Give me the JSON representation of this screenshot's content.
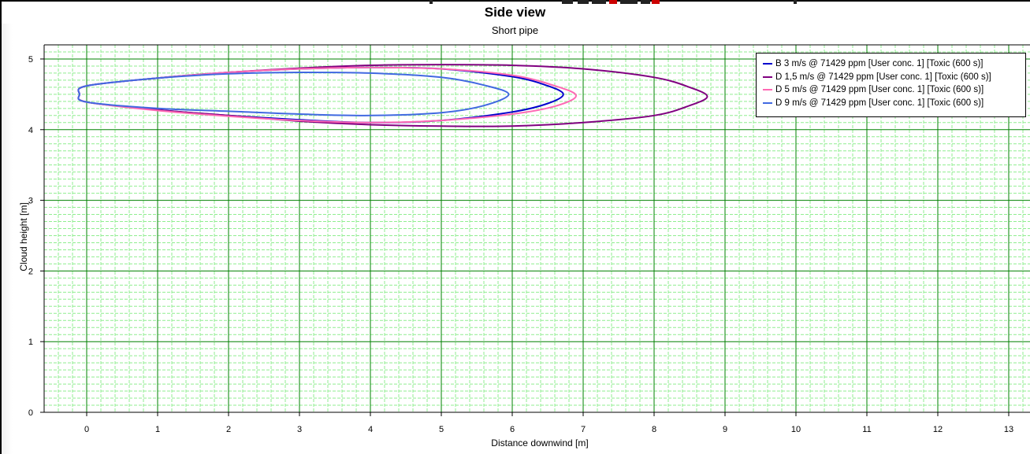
{
  "chart_data": {
    "type": "line",
    "title": "Side view",
    "subtitle": "Short pipe",
    "xlabel": "Distance downwind [m]",
    "ylabel": "Cloud height [m]",
    "xlim": [
      -0.6,
      13.3
    ],
    "ylim": [
      0,
      5.2
    ],
    "x_ticks": [
      "0",
      "1",
      "2",
      "3",
      "4",
      "5",
      "6",
      "7",
      "8",
      "9",
      "10",
      "11",
      "12",
      "13"
    ],
    "y_ticks": [
      "0",
      "1",
      "2",
      "3",
      "4",
      "5"
    ],
    "grid": {
      "major": true,
      "minor": true,
      "major_color": "#008000",
      "minor_color": "#90EE90"
    },
    "legend_position": "top-right",
    "series": [
      {
        "name": "B 3 m/s @ 71429 ppm  [User conc. 1]  [Toxic (600 s)]",
        "color": "#0000CD",
        "x": [
          -0.1,
          0.0,
          1.0,
          2.0,
          3.0,
          4.0,
          5.0,
          6.0,
          6.5,
          6.72,
          6.5,
          6.0,
          5.0,
          4.0,
          3.0,
          2.0,
          1.0,
          0.0,
          -0.1
        ],
        "y": [
          4.5,
          4.62,
          4.73,
          4.81,
          4.86,
          4.88,
          4.86,
          4.75,
          4.62,
          4.5,
          4.37,
          4.25,
          4.13,
          4.1,
          4.14,
          4.2,
          4.28,
          4.39,
          4.5
        ]
      },
      {
        "name": "D 1,5 m/s @ 71429 ppm  [User conc. 1]  [Toxic (600 s)]",
        "color": "#800080",
        "x": [
          -0.1,
          0.0,
          1.0,
          2.0,
          3.0,
          4.0,
          5.0,
          6.0,
          7.0,
          8.0,
          8.5,
          8.75,
          8.5,
          8.0,
          7.0,
          6.0,
          5.0,
          4.0,
          3.0,
          2.0,
          1.0,
          0.0,
          -0.1
        ],
        "y": [
          4.5,
          4.62,
          4.73,
          4.81,
          4.87,
          4.91,
          4.92,
          4.91,
          4.86,
          4.74,
          4.6,
          4.47,
          4.34,
          4.2,
          4.1,
          4.05,
          4.05,
          4.07,
          4.12,
          4.2,
          4.28,
          4.39,
          4.5
        ]
      },
      {
        "name": "D 5 m/s @ 71429 ppm  [User conc. 1]  [Toxic (600 s)]",
        "color": "#FF69B4",
        "x": [
          -0.1,
          0.0,
          1.0,
          2.0,
          3.0,
          4.0,
          5.0,
          6.0,
          6.6,
          6.9,
          6.6,
          6.0,
          5.0,
          4.0,
          3.0,
          2.0,
          1.0,
          0.0,
          -0.1
        ],
        "y": [
          4.5,
          4.62,
          4.73,
          4.81,
          4.86,
          4.88,
          4.86,
          4.77,
          4.62,
          4.48,
          4.33,
          4.22,
          4.13,
          4.1,
          4.13,
          4.19,
          4.27,
          4.39,
          4.5
        ]
      },
      {
        "name": "D 9 m/s @ 71429 ppm  [User conc. 1]  [Toxic (600 s)]",
        "color": "#4169E1",
        "x": [
          -0.1,
          0.0,
          1.0,
          2.0,
          3.0,
          4.0,
          5.0,
          5.6,
          5.95,
          5.6,
          5.0,
          4.0,
          3.0,
          2.0,
          1.0,
          0.0,
          -0.1
        ],
        "y": [
          4.5,
          4.62,
          4.73,
          4.79,
          4.81,
          4.8,
          4.74,
          4.63,
          4.5,
          4.34,
          4.24,
          4.2,
          4.22,
          4.26,
          4.3,
          4.39,
          4.5
        ]
      }
    ]
  }
}
